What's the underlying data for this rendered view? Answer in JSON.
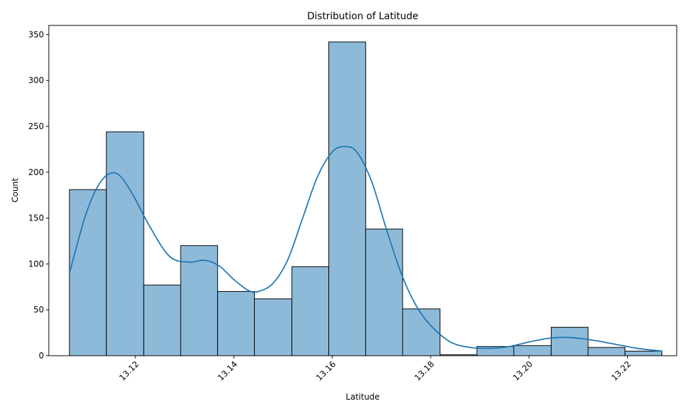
{
  "chart_data": {
    "type": "bar",
    "title": "Distribution of Latitude",
    "xlabel": "Latitude",
    "ylabel": "Count",
    "xlim": [
      13.1024,
      13.23
    ],
    "ylim": [
      0,
      360
    ],
    "xticks": [
      "13.12",
      "13.14",
      "13.16",
      "13.18",
      "13.20",
      "13.22"
    ],
    "xtick_values": [
      13.12,
      13.14,
      13.16,
      13.18,
      13.2,
      13.22
    ],
    "yticks": [
      "0",
      "50",
      "100",
      "150",
      "200",
      "250",
      "300",
      "350"
    ],
    "ytick_values": [
      0,
      50,
      100,
      150,
      200,
      250,
      300,
      350
    ],
    "bins": [
      {
        "x0": 13.1066,
        "x1": 13.1141,
        "count": 181
      },
      {
        "x0": 13.1141,
        "x1": 13.1217,
        "count": 244
      },
      {
        "x0": 13.1217,
        "x1": 13.1292,
        "count": 77
      },
      {
        "x0": 13.1292,
        "x1": 13.1367,
        "count": 120
      },
      {
        "x0": 13.1367,
        "x1": 13.1442,
        "count": 70
      },
      {
        "x0": 13.1442,
        "x1": 13.1518,
        "count": 62
      },
      {
        "x0": 13.1518,
        "x1": 13.1593,
        "count": 97
      },
      {
        "x0": 13.1593,
        "x1": 13.1668,
        "count": 342
      },
      {
        "x0": 13.1668,
        "x1": 13.1743,
        "count": 138
      },
      {
        "x0": 13.1743,
        "x1": 13.1819,
        "count": 51
      },
      {
        "x0": 13.1819,
        "x1": 13.1894,
        "count": 1
      },
      {
        "x0": 13.1894,
        "x1": 13.1969,
        "count": 10
      },
      {
        "x0": 13.1969,
        "x1": 13.2045,
        "count": 11
      },
      {
        "x0": 13.2045,
        "x1": 13.212,
        "count": 31
      },
      {
        "x0": 13.212,
        "x1": 13.2195,
        "count": 9
      },
      {
        "x0": 13.2195,
        "x1": 13.227,
        "count": 5
      }
    ],
    "kde": {
      "x": [
        13.1066,
        13.11,
        13.113,
        13.116,
        13.119,
        13.123,
        13.127,
        13.131,
        13.134,
        13.137,
        13.14,
        13.143,
        13.145,
        13.148,
        13.151,
        13.154,
        13.157,
        13.16,
        13.1625,
        13.165,
        13.168,
        13.171,
        13.174,
        13.177,
        13.18,
        13.184,
        13.188,
        13.192,
        13.196,
        13.2,
        13.204,
        13.207,
        13.21,
        13.214,
        13.218,
        13.222,
        13.227
      ],
      "y": [
        90,
        155,
        190,
        199,
        180,
        140,
        108,
        102,
        104,
        98,
        83,
        71,
        70,
        79,
        105,
        150,
        195,
        222,
        228,
        222,
        190,
        138,
        90,
        55,
        33,
        15,
        9,
        8,
        10,
        15,
        19,
        20,
        19,
        16,
        12,
        8,
        5
      ]
    },
    "grid": false,
    "colors": {
      "bar_fill": "#8ebad9",
      "bar_edge": "#000000",
      "kde_line": "#1f77b4"
    }
  }
}
